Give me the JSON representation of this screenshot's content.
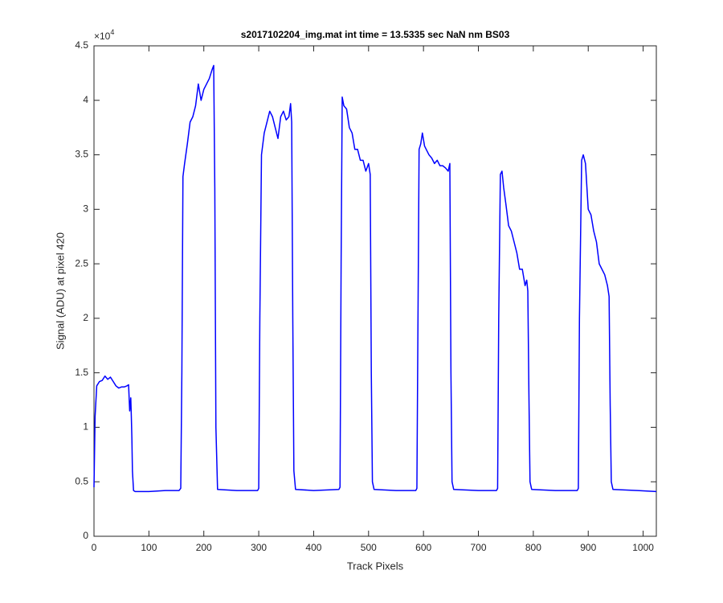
{
  "chart_data": {
    "type": "line",
    "title": "s2017102204_img.mat int time = 13.5335 sec  NaN nm BS03",
    "xlabel": "Track Pixels",
    "ylabel": "Signal (ADU) at pixel 420",
    "y_multiplier": "×10",
    "y_multiplier_exponent": "4",
    "color": "#0000ff",
    "xlim": [
      0,
      1024
    ],
    "ylim": [
      0,
      4.5
    ],
    "xticks": [
      0,
      100,
      200,
      300,
      400,
      500,
      600,
      700,
      800,
      900,
      1000
    ],
    "yticks": [
      0,
      0.5,
      1,
      1.5,
      2,
      2.5,
      3,
      3.5,
      4,
      4.5
    ],
    "grid": false,
    "x": [
      0,
      2,
      5,
      10,
      15,
      20,
      25,
      30,
      35,
      40,
      45,
      50,
      55,
      60,
      63,
      65,
      67,
      68,
      69,
      70,
      72,
      75,
      100,
      130,
      155,
      158,
      160,
      162,
      165,
      170,
      175,
      180,
      185,
      190,
      195,
      200,
      205,
      210,
      215,
      218,
      220,
      222,
      225,
      260,
      298,
      300,
      302,
      305,
      310,
      315,
      320,
      325,
      330,
      335,
      340,
      345,
      350,
      355,
      358,
      360,
      362,
      364,
      367,
      400,
      446,
      448,
      450,
      452,
      455,
      460,
      465,
      470,
      475,
      480,
      485,
      490,
      495,
      500,
      503,
      505,
      507,
      510,
      550,
      586,
      588,
      590,
      592,
      595,
      598,
      602,
      605,
      610,
      615,
      620,
      625,
      630,
      635,
      640,
      645,
      648,
      650,
      652,
      655,
      700,
      733,
      735,
      737,
      740,
      743,
      746,
      750,
      755,
      760,
      765,
      770,
      775,
      780,
      785,
      788,
      790,
      792,
      794,
      797,
      840,
      880,
      882,
      884,
      888,
      891,
      895,
      900,
      905,
      910,
      915,
      920,
      925,
      930,
      935,
      938,
      940,
      942,
      945,
      990,
      1024
    ],
    "values": [
      0.45,
      1.1,
      1.38,
      1.42,
      1.43,
      1.47,
      1.44,
      1.46,
      1.42,
      1.38,
      1.36,
      1.37,
      1.37,
      1.38,
      1.39,
      1.15,
      1.27,
      1.1,
      0.9,
      0.6,
      0.42,
      0.41,
      0.41,
      0.42,
      0.42,
      0.44,
      1.5,
      3.3,
      3.42,
      3.6,
      3.8,
      3.85,
      3.95,
      4.15,
      4.0,
      4.1,
      4.15,
      4.2,
      4.28,
      4.32,
      3.2,
      1.0,
      0.43,
      0.42,
      0.42,
      0.44,
      2.0,
      3.5,
      3.7,
      3.8,
      3.9,
      3.85,
      3.75,
      3.65,
      3.85,
      3.9,
      3.82,
      3.85,
      3.97,
      3.8,
      2.0,
      0.6,
      0.43,
      0.42,
      0.43,
      0.45,
      2.5,
      4.03,
      3.95,
      3.92,
      3.75,
      3.7,
      3.55,
      3.55,
      3.45,
      3.45,
      3.35,
      3.42,
      3.32,
      1.5,
      0.5,
      0.43,
      0.42,
      0.42,
      0.44,
      2.0,
      3.55,
      3.6,
      3.7,
      3.58,
      3.55,
      3.5,
      3.47,
      3.42,
      3.45,
      3.4,
      3.4,
      3.38,
      3.35,
      3.42,
      1.5,
      0.5,
      0.43,
      0.42,
      0.42,
      0.44,
      2.0,
      3.32,
      3.35,
      3.2,
      3.05,
      2.85,
      2.8,
      2.7,
      2.6,
      2.45,
      2.45,
      2.3,
      2.35,
      2.25,
      1.3,
      0.5,
      0.43,
      0.42,
      0.42,
      0.44,
      2.0,
      3.45,
      3.5,
      3.42,
      3.0,
      2.95,
      2.8,
      2.7,
      2.5,
      2.45,
      2.4,
      2.3,
      2.2,
      1.2,
      0.5,
      0.43,
      0.42,
      0.41
    ]
  }
}
